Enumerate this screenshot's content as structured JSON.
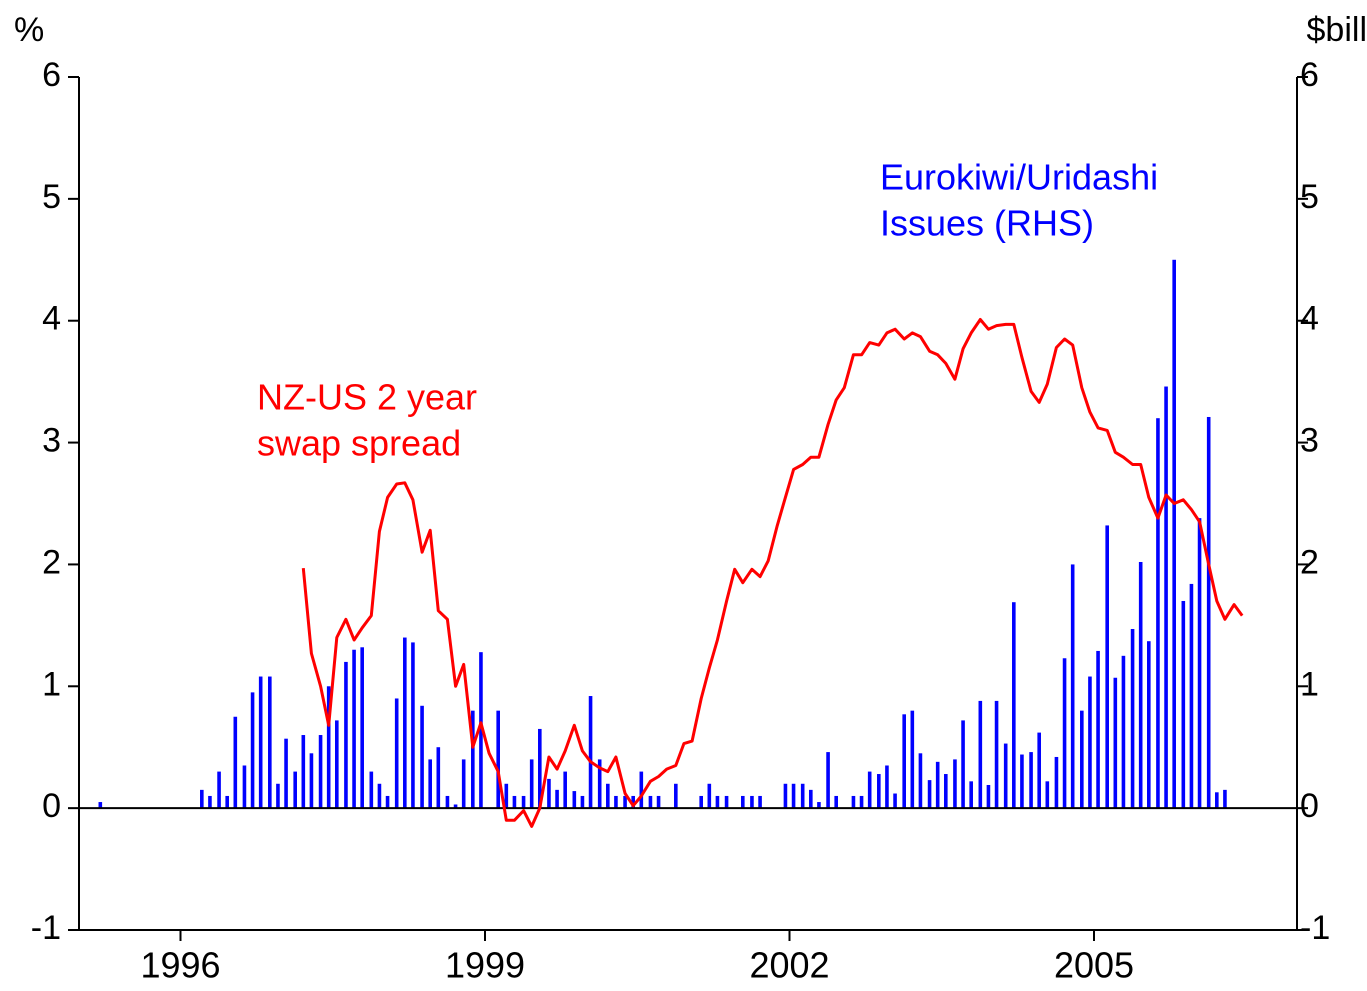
{
  "chart_data": {
    "type": "bar-line",
    "ylabel": "%",
    "y2label": "$bill",
    "xlim": [
      1995,
      2007
    ],
    "xticks": [
      1996,
      1999,
      2002,
      2005
    ],
    "ylim": [
      -1,
      6
    ],
    "yticks": [
      -1,
      0,
      1,
      2,
      3,
      4,
      5,
      6
    ],
    "y2lim": [
      -1,
      6
    ],
    "y2ticks": [
      -1,
      0,
      1,
      2,
      3,
      4,
      5,
      6
    ],
    "x": [
      1995.21,
      1995.29,
      1995.38,
      1995.46,
      1995.54,
      1995.63,
      1995.71,
      1995.79,
      1995.88,
      1995.96,
      1996.04,
      1996.13,
      1996.21,
      1996.29,
      1996.38,
      1996.46,
      1996.54,
      1996.63,
      1996.71,
      1996.79,
      1996.88,
      1996.96,
      1997.04,
      1997.13,
      1997.21,
      1997.29,
      1997.38,
      1997.46,
      1997.54,
      1997.63,
      1997.71,
      1997.79,
      1997.88,
      1997.96,
      1998.04,
      1998.13,
      1998.21,
      1998.29,
      1998.38,
      1998.46,
      1998.54,
      1998.63,
      1998.71,
      1998.79,
      1998.88,
      1998.96,
      1999.04,
      1999.13,
      1999.21,
      1999.29,
      1999.38,
      1999.46,
      1999.54,
      1999.63,
      1999.71,
      1999.79,
      1999.88,
      1999.96,
      2000.04,
      2000.13,
      2000.21,
      2000.29,
      2000.38,
      2000.46,
      2000.54,
      2000.63,
      2000.71,
      2000.79,
      2000.88,
      2000.96,
      2001.04,
      2001.13,
      2001.21,
      2001.29,
      2001.38,
      2001.46,
      2001.54,
      2001.63,
      2001.71,
      2001.79,
      2001.88,
      2001.96,
      2002.04,
      2002.13,
      2002.21,
      2002.29,
      2002.38,
      2002.46,
      2002.54,
      2002.63,
      2002.71,
      2002.79,
      2002.88,
      2002.96,
      2003.04,
      2003.13,
      2003.21,
      2003.29,
      2003.38,
      2003.46,
      2003.54,
      2003.63,
      2003.71,
      2003.79,
      2003.88,
      2003.96,
      2004.04,
      2004.13,
      2004.21,
      2004.29,
      2004.38,
      2004.46,
      2004.54,
      2004.63,
      2004.71,
      2004.79,
      2004.88,
      2004.96,
      2005.04,
      2005.13,
      2005.21,
      2005.29,
      2005.38,
      2005.46,
      2005.54,
      2005.63,
      2005.71,
      2005.79,
      2005.88,
      2005.96,
      2006.04,
      2006.13,
      2006.21,
      2006.29,
      2006.38,
      2006.46
    ],
    "series": [
      {
        "name": "Eurokiwi/Uridashi Issues (RHS)",
        "kind": "bar",
        "axis": "y2",
        "color": "#0000ff",
        "values": [
          0.05,
          null,
          null,
          null,
          null,
          null,
          null,
          null,
          null,
          null,
          null,
          null,
          0.15,
          0.1,
          0.3,
          0.1,
          0.75,
          0.35,
          0.95,
          1.08,
          1.08,
          0.2,
          0.57,
          0.3,
          0.6,
          0.45,
          0.6,
          1.0,
          0.72,
          1.2,
          1.3,
          1.32,
          0.3,
          0.2,
          0.1,
          0.9,
          1.4,
          1.36,
          0.84,
          0.4,
          0.5,
          0.1,
          0.03,
          0.4,
          0.8,
          1.28,
          null,
          0.8,
          0.2,
          0.1,
          0.1,
          0.4,
          0.65,
          0.24,
          0.15,
          0.3,
          0.14,
          0.1,
          0.92,
          0.4,
          0.2,
          0.1,
          0.1,
          0.1,
          0.3,
          0.1,
          0.1,
          null,
          0.2,
          null,
          null,
          0.1,
          0.2,
          0.1,
          0.1,
          null,
          0.1,
          0.1,
          0.1,
          null,
          null,
          0.2,
          0.2,
          0.2,
          0.15,
          0.05,
          0.46,
          0.1,
          null,
          0.1,
          0.1,
          0.3,
          0.28,
          0.35,
          0.12,
          0.77,
          0.8,
          0.45,
          0.23,
          0.38,
          0.28,
          0.4,
          0.72,
          0.22,
          0.88,
          0.19,
          0.88,
          0.53,
          1.69,
          0.44,
          0.46,
          0.62,
          0.22,
          0.42,
          1.23,
          2.0,
          0.8,
          1.08,
          1.29,
          2.32,
          1.07,
          1.25,
          1.47,
          2.02,
          1.37,
          3.2,
          3.46,
          4.5,
          1.7,
          1.84,
          2.38,
          3.21,
          0.13,
          0.15,
          null,
          null
        ]
      },
      {
        "name": "NZ-US 2 year swap spread",
        "kind": "line",
        "color": "#ff0000",
        "values": [
          null,
          null,
          null,
          null,
          null,
          null,
          null,
          null,
          null,
          null,
          null,
          null,
          null,
          null,
          null,
          null,
          null,
          null,
          null,
          null,
          null,
          null,
          null,
          null,
          1.97,
          1.27,
          1.0,
          0.68,
          1.4,
          1.55,
          1.38,
          1.48,
          1.58,
          2.27,
          2.55,
          2.66,
          2.67,
          2.53,
          2.1,
          2.28,
          1.62,
          1.55,
          1.0,
          1.18,
          0.5,
          0.7,
          0.45,
          0.3,
          -0.1,
          -0.1,
          -0.02,
          -0.15,
          0.0,
          0.42,
          0.32,
          0.47,
          0.68,
          0.47,
          0.38,
          0.33,
          0.3,
          0.42,
          0.12,
          0.02,
          0.1,
          0.22,
          0.26,
          0.32,
          0.35,
          0.53,
          0.55,
          0.9,
          1.15,
          1.38,
          1.7,
          1.96,
          1.85,
          1.96,
          1.9,
          2.03,
          2.32,
          2.55,
          2.78,
          2.82,
          2.88,
          2.88,
          3.15,
          3.35,
          3.45,
          3.72,
          3.72,
          3.82,
          3.8,
          3.9,
          3.93,
          3.85,
          3.9,
          3.87,
          3.75,
          3.72,
          3.65,
          3.52,
          3.77,
          3.9,
          4.01,
          3.93,
          3.96,
          3.97,
          3.97,
          3.7,
          3.42,
          3.33,
          3.48,
          3.78,
          3.85,
          3.8,
          3.45,
          3.25,
          3.12,
          3.1,
          2.92,
          2.88,
          2.82,
          2.82,
          2.55,
          2.38,
          2.57,
          2.5,
          2.53,
          2.45,
          2.35,
          2.0,
          1.7,
          1.55,
          1.67,
          1.58
        ]
      }
    ],
    "annotations": [
      {
        "lines": [
          "NZ-US 2 year",
          "swap spread"
        ],
        "color": "#ff0000"
      },
      {
        "lines": [
          "Eurokiwi/Uridashi",
          "Issues (RHS)"
        ],
        "color": "#0000ff"
      }
    ]
  }
}
